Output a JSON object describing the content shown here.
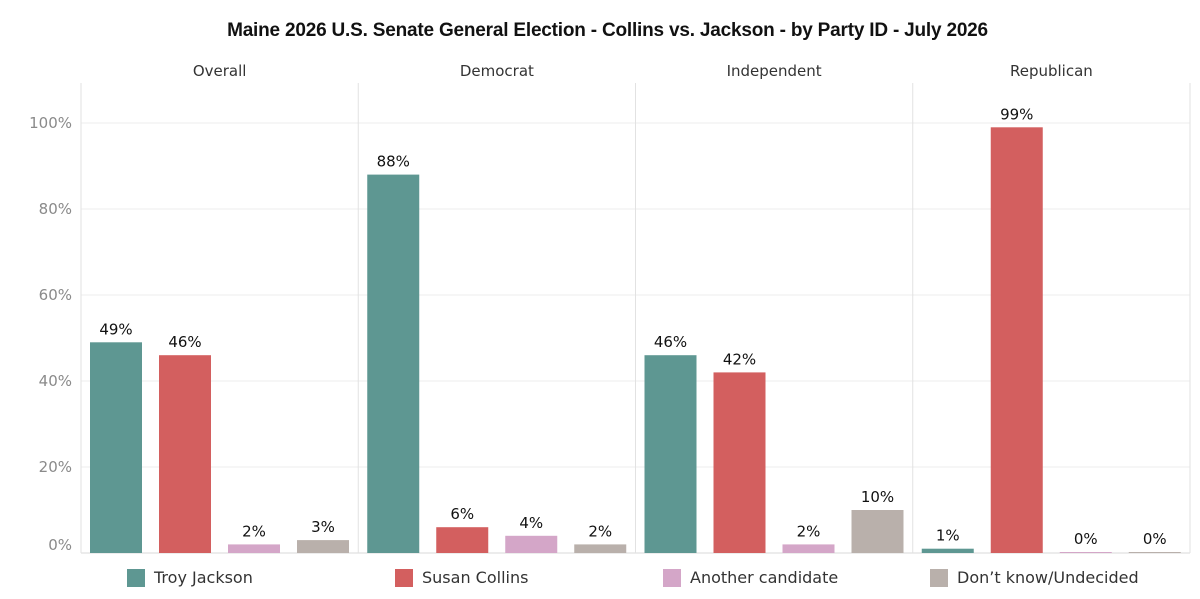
{
  "chart_data": {
    "type": "bar",
    "title": "Maine 2026 U.S. Senate General Election - Collins vs. Jackson - by Party ID - July 2026",
    "panels": [
      "Overall",
      "Democrat",
      "Independent",
      "Republican"
    ],
    "series": [
      {
        "name": "Troy Jackson",
        "color": "#5e9792",
        "values": [
          49,
          88,
          46,
          1
        ]
      },
      {
        "name": "Susan Collins",
        "color": "#d35f5f",
        "values": [
          46,
          6,
          42,
          99
        ]
      },
      {
        "name": "Another candidate",
        "color": "#d4a6c8",
        "values": [
          2,
          4,
          2,
          0
        ]
      },
      {
        "name": "Don’t know/Undecided",
        "color": "#b9b0ab",
        "values": [
          3,
          2,
          10,
          0
        ]
      }
    ],
    "y_ticks": [
      "0%",
      "20%",
      "40%",
      "60%",
      "80%",
      "100%"
    ],
    "ylim": [
      0,
      100
    ],
    "grid": true,
    "legend_position": "bottom"
  }
}
